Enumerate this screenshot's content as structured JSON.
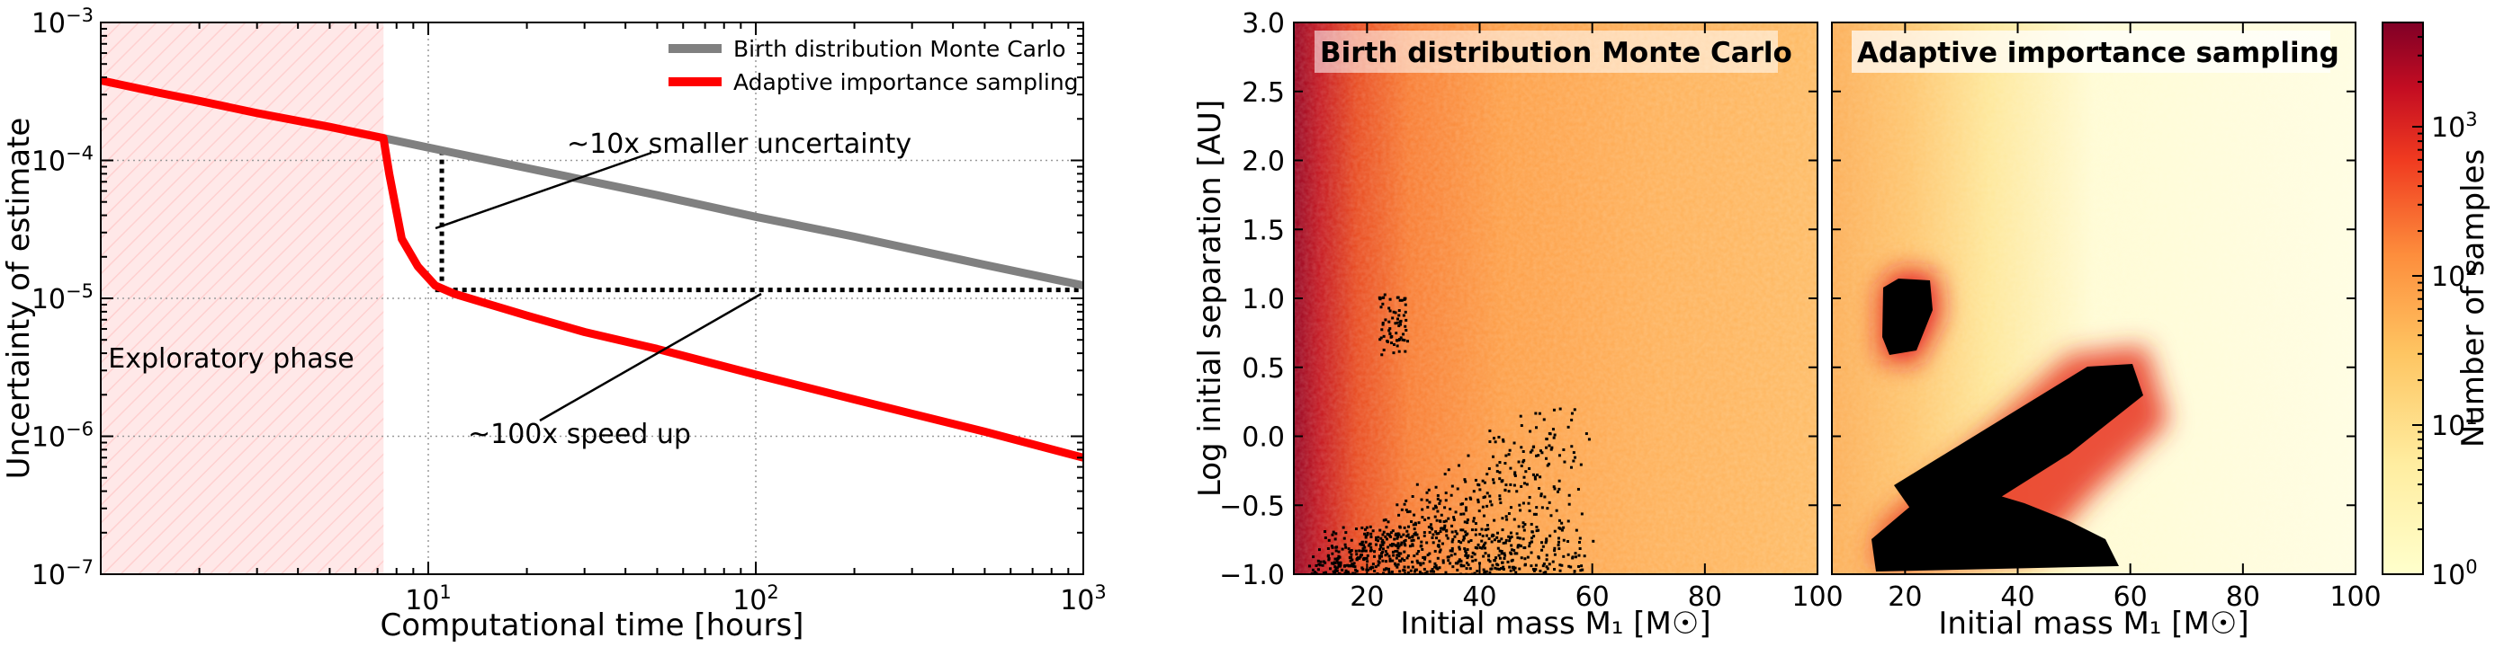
{
  "chart_data": [
    {
      "type": "line",
      "xlabel": "Computational time [hours]",
      "ylabel": "Uncertainty of estimate",
      "xscale": "log",
      "yscale": "log",
      "xlim": [
        1,
        1000
      ],
      "ylim": [
        1e-07,
        0.001
      ],
      "x_tick_labels": [
        "10^1",
        "10^2",
        "10^3"
      ],
      "y_tick_labels": [
        "10^-7",
        "10^-6",
        "10^-5",
        "10^-4",
        "10^-3"
      ],
      "grid": true,
      "legend_position": "top-right",
      "series": [
        {
          "name": "Birth distribution Monte Carlo",
          "color": "#808080",
          "x": [
            7.3,
            10,
            20,
            50,
            100,
            200,
            500,
            1000
          ],
          "y": [
            0.000145,
            0.000124,
            8.8e-05,
            5.6e-05,
            3.9e-05,
            2.8e-05,
            1.75e-05,
            1.24e-05
          ]
        },
        {
          "name": "Adaptive importance sampling",
          "color": "#ff0000",
          "x": [
            1,
            1.5,
            2,
            3,
            5,
            7.3,
            7.6,
            8.3,
            9.3,
            10.5,
            12,
            15,
            20,
            30,
            50,
            100,
            200,
            500,
            1000
          ],
          "y": [
            0.00038,
            0.00031,
            0.00027,
            0.00022,
            0.000175,
            0.000145,
            8e-05,
            2.7e-05,
            1.7e-05,
            1.24e-05,
            1.08e-05,
            9.2e-06,
            7.5e-06,
            5.7e-06,
            4.3e-06,
            2.8e-06,
            1.85e-06,
            1.08e-06,
            7e-07
          ]
        }
      ],
      "shaded_region": {
        "label": "Exploratory phase",
        "x": [
          1,
          7.3
        ],
        "color": "#ffe4e4"
      },
      "annotations": [
        {
          "text": "~10x smaller uncertainty",
          "at": [
            11,
            3.2e-05
          ]
        },
        {
          "text": "~100x speed up",
          "at": [
            100,
            1.15e-05
          ]
        }
      ],
      "reference_lines": [
        {
          "orientation": "vertical",
          "x": 11,
          "y": [
            1.15e-05,
            0.00012
          ]
        },
        {
          "orientation": "horizontal",
          "y": 1.15e-05,
          "x": [
            10.5,
            1000
          ]
        }
      ]
    },
    {
      "type": "heatmap",
      "title": "Birth distribution Monte Carlo",
      "xlabel": "Initial mass M₁ [M☉]",
      "ylabel": "Log initial separation  [AU]",
      "xlim": [
        7,
        100
      ],
      "ylim": [
        -1.0,
        3.0
      ],
      "x_tick_labels": [
        "20",
        "40",
        "60",
        "80",
        "100"
      ],
      "y_tick_labels": [
        "−1.0",
        "−0.5",
        "0.0",
        "0.5",
        "1.0",
        "1.5",
        "2.0",
        "2.5",
        "3.0"
      ],
      "density": "highest at low mass (dark red near M₁ ≈ 7–12), decreasing to light orange by M₁ ≈ 100; nearly uniform in separation",
      "highlighted_points": "sparse black points: cluster near M₁ ≈ 22–27, log a ≈ 0.6–1.05; band from M₁ ≈ 15–55, log a ≈ −1.0 to 0.3"
    },
    {
      "type": "heatmap",
      "title": "Adaptive importance sampling",
      "xlabel": "Initial mass M₁ [M☉]",
      "xlim": [
        7,
        100
      ],
      "ylim": [
        -1.0,
        3.0
      ],
      "x_tick_labels": [
        "20",
        "40",
        "60",
        "80",
        "100"
      ],
      "density": "concentrated around the target regions (dark red halo), pale elsewhere",
      "highlighted_points": "dense black regions: blob near M₁ ≈ 18–27, log a ≈ 0.4–1.1; diagonal band from M₁ ≈ 20 to 58, log a ≈ −0.9 to 0.5; base near M₁ ≈ 15–60, log a ≈ −1.0 to −0.6"
    }
  ],
  "colorbar": {
    "label": "Number of samples",
    "scale": "log",
    "range": [
      1,
      5000
    ],
    "tick_labels": [
      "10^0",
      "10^1",
      "10^2",
      "10^3"
    ],
    "colors": [
      "#ffffcc",
      "#fed976",
      "#fd8d3c",
      "#e31a1c",
      "#800026"
    ]
  }
}
